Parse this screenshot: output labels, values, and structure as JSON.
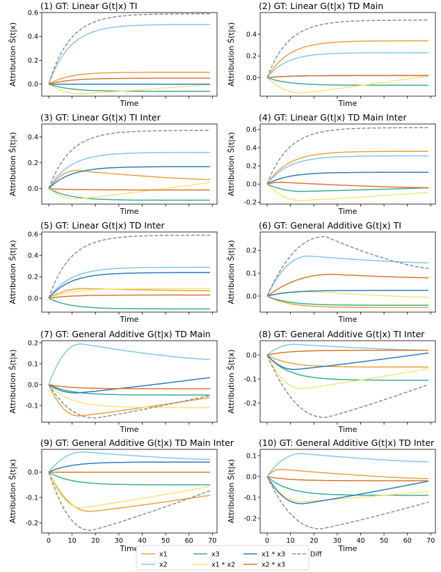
{
  "legend_colors": {
    "x1": "#e8a33a",
    "x2": "#84c6ea",
    "x3": "#3aae8d",
    "x1 * x2": "#f6e47a",
    "x1 * x3": "#2e7dba",
    "x2 * x3": "#d9772c",
    "Diff": "#8c8c8c"
  },
  "legend": [
    {
      "key": "x1",
      "label": "x1"
    },
    {
      "key": "x2",
      "label": "x2"
    },
    {
      "key": "x3",
      "label": "x3"
    },
    {
      "key": "x1 * x2",
      "label": "x1 * x2"
    },
    {
      "key": "x1 * x3",
      "label": "x1 * x3"
    },
    {
      "key": "x2 * x3",
      "label": "x2 * x3"
    },
    {
      "key": "Diff",
      "label": "Diff"
    }
  ],
  "chart_data": [
    {
      "type": "line",
      "title": "(1) GT: Linear G(t|x) TI",
      "xlabel": "Time",
      "ylabel": "Attribution Ŝ(t|x)",
      "xlim": [
        -3,
        72
      ],
      "ylim": [
        -0.1,
        0.6
      ],
      "yticks": [
        0.0,
        0.2,
        0.4,
        0.6
      ],
      "show_xticks": false,
      "series": [
        {
          "name": "x1",
          "end": 0.1,
          "shape": "rise"
        },
        {
          "name": "x2",
          "end": 0.5,
          "shape": "sat"
        },
        {
          "name": "x3",
          "end": -0.06,
          "shape": "sat"
        },
        {
          "name": "x1 * x2",
          "end": 0.0,
          "shape": "dip",
          "depth": -0.08,
          "peak": 14
        },
        {
          "name": "x1 * x3",
          "end": 0.0,
          "shape": "sat"
        },
        {
          "name": "x2 * x3",
          "end": 0.05,
          "shape": "sat"
        },
        {
          "name": "Diff",
          "end": 0.59,
          "shape": "sat"
        }
      ]
    },
    {
      "type": "line",
      "title": "(2) GT: Linear G(t|x) TD Main",
      "xlabel": "Time",
      "ylabel": "Attribution Ŝ(t|x)",
      "xlim": [
        -3,
        72
      ],
      "ylim": [
        -0.17,
        0.6
      ],
      "yticks": [
        0.0,
        0.2,
        0.4
      ],
      "show_xticks": false,
      "series": [
        {
          "name": "x1",
          "end": 0.34,
          "shape": "sat"
        },
        {
          "name": "x2",
          "end": 0.23,
          "shape": "rise"
        },
        {
          "name": "x3",
          "end": -0.07,
          "shape": "sat"
        },
        {
          "name": "x1 * x2",
          "end": 0.02,
          "shape": "dip",
          "depth": -0.14,
          "peak": 15
        },
        {
          "name": "x1 * x3",
          "end": 0.02,
          "shape": "sat"
        },
        {
          "name": "x2 * x3",
          "end": 0.02,
          "shape": "sat"
        },
        {
          "name": "Diff",
          "end": 0.53,
          "shape": "sat"
        }
      ]
    },
    {
      "type": "line",
      "title": "(3) GT: Linear G(t|x) TI Inter",
      "xlabel": "Time",
      "ylabel": "Attribution Ŝ(t|x)",
      "xlim": [
        -3,
        72
      ],
      "ylim": [
        -0.12,
        0.5
      ],
      "yticks": [
        0.0,
        0.2,
        0.4
      ],
      "show_xticks": false,
      "series": [
        {
          "name": "x1",
          "end": 0.07,
          "shape": "rise",
          "peak": 0.14,
          "at": 12
        },
        {
          "name": "x2",
          "end": 0.28,
          "shape": "sat"
        },
        {
          "name": "x3",
          "end": -0.09,
          "shape": "sat"
        },
        {
          "name": "x1 * x2",
          "end": 0.05,
          "shape": "dip",
          "depth": -0.08,
          "peak": 12
        },
        {
          "name": "x1 * x3",
          "end": 0.17,
          "shape": "sat"
        },
        {
          "name": "x2 * x3",
          "end": -0.01,
          "shape": "sat"
        },
        {
          "name": "Diff",
          "end": 0.45,
          "shape": "sat"
        }
      ]
    },
    {
      "type": "line",
      "title": "(4) GT: Linear G(t|x) TD Main Inter",
      "xlabel": "Time",
      "ylabel": "Attribution Ŝ(t|x)",
      "xlim": [
        -3,
        72
      ],
      "ylim": [
        -0.22,
        0.66
      ],
      "yticks": [
        -0.2,
        0.0,
        0.2,
        0.4,
        0.6
      ],
      "show_xticks": false,
      "series": [
        {
          "name": "x1",
          "end": 0.36,
          "shape": "sat"
        },
        {
          "name": "x2",
          "end": 0.31,
          "shape": "sat"
        },
        {
          "name": "x3",
          "end": -0.04,
          "shape": "dip",
          "depth": -0.08,
          "peak": 15
        },
        {
          "name": "x1 * x2",
          "end": -0.09,
          "shape": "dip",
          "depth": -0.18,
          "peak": 15
        },
        {
          "name": "x1 * x3",
          "end": 0.13,
          "shape": "sat"
        },
        {
          "name": "x2 * x3",
          "end": -0.04,
          "shape": "rise",
          "peak": 0.02,
          "at": 6
        },
        {
          "name": "Diff",
          "end": 0.62,
          "shape": "sat"
        }
      ]
    },
    {
      "type": "line",
      "title": "(5) GT: Linear G(t|x) TD Inter",
      "xlabel": "Time",
      "ylabel": "Attribution Ŝ(t|x)",
      "xlim": [
        -3,
        72
      ],
      "ylim": [
        -0.13,
        0.62
      ],
      "yticks": [
        0.0,
        0.2,
        0.4,
        0.6
      ],
      "show_xticks": false,
      "series": [
        {
          "name": "x1",
          "end": 0.07,
          "shape": "rise",
          "peak": 0.09,
          "at": 15
        },
        {
          "name": "x2",
          "end": 0.29,
          "shape": "sat"
        },
        {
          "name": "x3",
          "end": -0.1,
          "shape": "sat"
        },
        {
          "name": "x1 * x2",
          "end": 0.09,
          "shape": "sat"
        },
        {
          "name": "x1 * x3",
          "end": 0.24,
          "shape": "sat"
        },
        {
          "name": "x2 * x3",
          "end": 0.03,
          "shape": "sat"
        },
        {
          "name": "Diff",
          "end": 0.59,
          "shape": "sat"
        }
      ]
    },
    {
      "type": "line",
      "title": "(6) GT: General Additive G(t|x) TI",
      "xlabel": "Time",
      "ylabel": "Attribution Ŝ(t|x)",
      "xlim": [
        -3,
        72
      ],
      "ylim": [
        -0.07,
        0.28
      ],
      "yticks": [
        0.0,
        0.1,
        0.2
      ],
      "show_xticks": false,
      "series": [
        {
          "name": "x1",
          "end": -0.05,
          "shape": "sat"
        },
        {
          "name": "x2",
          "end": 0.145,
          "shape": "rise",
          "peak": 0.175,
          "at": 18
        },
        {
          "name": "x3",
          "end": -0.04,
          "shape": "sat"
        },
        {
          "name": "x1 * x2",
          "end": -0.005,
          "shape": "rise",
          "peak": 0.02,
          "at": 20
        },
        {
          "name": "x1 * x3",
          "end": 0.025,
          "shape": "sat"
        },
        {
          "name": "x2 * x3",
          "end": 0.08,
          "shape": "rise",
          "peak": 0.095,
          "at": 28
        },
        {
          "name": "Diff",
          "end": 0.12,
          "shape": "rise",
          "peak": 0.26,
          "at": 25
        }
      ]
    },
    {
      "type": "line",
      "title": "(7) GT: General Additive G(t|x) TD Main",
      "xlabel": "Time",
      "ylabel": "Attribution Ŝ(t|x)",
      "xlim": [
        -3,
        72
      ],
      "ylim": [
        -0.18,
        0.21
      ],
      "yticks": [
        -0.1,
        0.0,
        0.1,
        0.2
      ],
      "show_xticks": false,
      "series": [
        {
          "name": "x1",
          "end": -0.06,
          "shape": "dip",
          "depth": -0.15,
          "peak": 13
        },
        {
          "name": "x2",
          "end": 0.12,
          "shape": "rise",
          "peak": 0.195,
          "at": 14
        },
        {
          "name": "x3",
          "end": -0.05,
          "shape": "sat"
        },
        {
          "name": "x1 * x2",
          "end": -0.11,
          "shape": "sat"
        },
        {
          "name": "x1 * x3",
          "end": 0.035,
          "shape": "dip",
          "depth": -0.04,
          "peak": 12
        },
        {
          "name": "x2 * x3",
          "end": -0.02,
          "shape": "sat"
        },
        {
          "name": "Diff",
          "end": -0.05,
          "shape": "dip",
          "depth": -0.16,
          "peak": 20
        }
      ]
    },
    {
      "type": "line",
      "title": "(8) GT: General Additive G(t|x) TI Inter",
      "xlabel": "Time",
      "ylabel": "Attribution Ŝ(t|x)",
      "xlim": [
        -3,
        72
      ],
      "ylim": [
        -0.28,
        0.06
      ],
      "yticks": [
        -0.2,
        -0.1,
        0.0
      ],
      "show_xticks": false,
      "series": [
        {
          "name": "x1",
          "end": -0.05,
          "shape": "sat"
        },
        {
          "name": "x2",
          "end": 0.02,
          "shape": "rise",
          "peak": 0.045,
          "at": 12
        },
        {
          "name": "x3",
          "end": -0.105,
          "shape": "sat"
        },
        {
          "name": "x1 * x2",
          "end": -0.055,
          "shape": "dip",
          "depth": -0.14,
          "peak": 15
        },
        {
          "name": "x1 * x3",
          "end": 0.01,
          "shape": "dip",
          "depth": -0.06,
          "peak": 12
        },
        {
          "name": "x2 * x3",
          "end": 0.02,
          "shape": "sat"
        },
        {
          "name": "Diff",
          "end": -0.12,
          "shape": "dip",
          "depth": -0.26,
          "peak": 25
        }
      ]
    },
    {
      "type": "line",
      "title": "(9) GT: General Additive G(t|x) TD Main Inter",
      "xlabel": "Time",
      "ylabel": "Attribution Ŝ(t|x)",
      "xlim": [
        -3,
        72
      ],
      "ylim": [
        -0.24,
        0.09
      ],
      "yticks": [
        -0.2,
        -0.1,
        0.0
      ],
      "xticks": [
        0,
        10,
        20,
        30,
        40,
        50,
        60,
        70
      ],
      "show_xticks": true,
      "series": [
        {
          "name": "x1",
          "end": -0.09,
          "shape": "dip",
          "depth": -0.155,
          "peak": 18
        },
        {
          "name": "x2",
          "end": 0.05,
          "shape": "rise",
          "peak": 0.08,
          "at": 15
        },
        {
          "name": "x3",
          "end": -0.05,
          "shape": "sat"
        },
        {
          "name": "x1 * x2",
          "end": -0.055,
          "shape": "dip",
          "depth": -0.14,
          "peak": 14
        },
        {
          "name": "x1 * x3",
          "end": 0.04,
          "shape": "sat"
        },
        {
          "name": "x2 * x3",
          "end": 0.0,
          "shape": "sat"
        },
        {
          "name": "Diff",
          "end": -0.07,
          "shape": "dip",
          "depth": -0.23,
          "peak": 18
        }
      ]
    },
    {
      "type": "line",
      "title": "(10) GT: General Additive G(t|x) TD Inter",
      "xlabel": "Time",
      "ylabel": "Attribution Ŝ(t|x)",
      "xlim": [
        -3,
        72
      ],
      "ylim": [
        -0.27,
        0.13
      ],
      "yticks": [
        -0.2,
        -0.1,
        0.0,
        0.1
      ],
      "xticks": [
        0,
        10,
        20,
        30,
        40,
        50,
        60,
        70
      ],
      "show_xticks": true,
      "series": [
        {
          "name": "x1",
          "end": -0.01,
          "shape": "rise",
          "peak": 0.035,
          "at": 6
        },
        {
          "name": "x2",
          "end": 0.07,
          "shape": "rise",
          "peak": 0.11,
          "at": 15
        },
        {
          "name": "x3",
          "end": -0.09,
          "shape": "sat"
        },
        {
          "name": "x1 * x2",
          "end": -0.07,
          "shape": "dip",
          "depth": -0.12,
          "peak": 15
        },
        {
          "name": "x1 * x3",
          "end": -0.02,
          "shape": "dip",
          "depth": -0.13,
          "peak": 15
        },
        {
          "name": "x2 * x3",
          "end": -0.02,
          "shape": "sat"
        },
        {
          "name": "Diff",
          "end": -0.12,
          "shape": "dip",
          "depth": -0.25,
          "peak": 23
        }
      ]
    }
  ]
}
